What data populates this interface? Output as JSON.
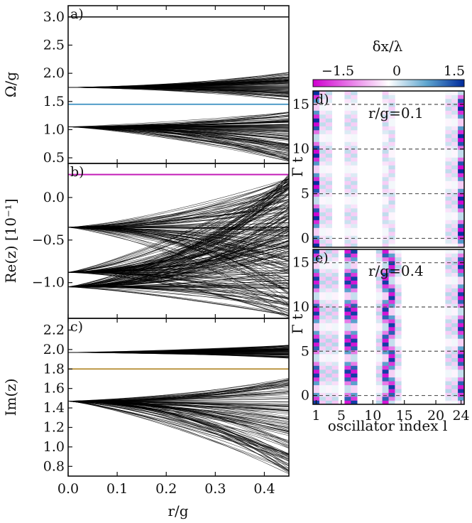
{
  "colors": {
    "a_level": "#1b1b1b",
    "a_special": "#3a8fc0",
    "b_special": "#c41fb8",
    "c_special": "#b38b2e",
    "cmap_neg": "#d000d0",
    "cmap_mid": "#ffffff",
    "cmap_pos": "#002a9c"
  },
  "shared_xaxis": {
    "label": "r/g",
    "ticks": [
      "0.0",
      "0.1",
      "0.2",
      "0.3",
      "0.4"
    ],
    "range": [
      0,
      0.45
    ]
  },
  "chart_data": [
    {
      "id": "a",
      "panel_label": "a)",
      "type": "line",
      "ylabel": "Ω/g",
      "ylim": [
        0.4,
        3.2
      ],
      "yticks": [
        "0.5",
        "1.0",
        "1.5",
        "2.0",
        "2.5",
        "3.0"
      ],
      "flat_lines": [
        3.0,
        1.45
      ],
      "band_start": [
        1.75,
        1.05
      ],
      "band_end_max": [
        2.02,
        1.32
      ],
      "band_end_min": [
        1.52,
        0.42
      ]
    },
    {
      "id": "b",
      "panel_label": "b)",
      "type": "line",
      "ylabel": "Re(z) [10⁻¹]",
      "ylim": [
        -1.42,
        0.4
      ],
      "yticks": [
        "0.0",
        "−0.5",
        "−1.0"
      ],
      "flat_lines": [
        0.27
      ],
      "band_start": [
        -0.35,
        -0.88,
        -1.05
      ],
      "band_end_max": 0.28,
      "band_end_min": -1.42
    },
    {
      "id": "c",
      "panel_label": "c)",
      "type": "line",
      "ylabel": "Im(z)",
      "ylim": [
        0.7,
        2.32
      ],
      "yticks": [
        "0.8",
        "1.0",
        "1.2",
        "1.4",
        "1.6",
        "1.8",
        "2.0",
        "2.2"
      ],
      "flat_lines": [
        1.8
      ],
      "band_start": [
        1.97,
        1.47
      ],
      "band_end_max": [
        2.05,
        1.72
      ],
      "band_end_min": [
        1.91,
        0.7
      ]
    },
    {
      "id": "d",
      "panel_label": "d)",
      "annotation": "r/g=0.1",
      "type": "heatmap",
      "ylabel": "Γ t",
      "ylim": [
        -1,
        16.5
      ],
      "yticks": [
        "0",
        "5",
        "10",
        "15"
      ],
      "dashed_y": [
        0,
        5,
        10,
        15
      ],
      "bright_columns": [
        1,
        24
      ],
      "faint_columns": [
        2,
        3,
        6,
        7,
        12,
        13,
        22,
        23
      ],
      "amplitude_bright": 1.5,
      "amplitude_faint": 0.3
    },
    {
      "id": "e",
      "panel_label": "e)",
      "annotation": "r/g=0.4",
      "type": "heatmap",
      "ylabel": "Γ t",
      "xlabel": "oscillator index l",
      "xticks": [
        "1",
        "5",
        "10",
        "15",
        "20",
        "24"
      ],
      "ylim": [
        -1,
        16.5
      ],
      "yticks": [
        "0",
        "5",
        "10",
        "15"
      ],
      "dashed_y": [
        0,
        5,
        10,
        15
      ],
      "bright_columns": [
        1,
        6,
        7,
        12,
        13,
        24
      ],
      "faint_columns": [
        2,
        3,
        4,
        11,
        14,
        22,
        23
      ],
      "amplitude_bright": 1.4,
      "amplitude_faint": 0.35
    }
  ],
  "colorbar": {
    "label": "δx/λ",
    "ticks": [
      "−1.5",
      "0",
      "1.5"
    ],
    "range": [
      -1.5,
      1.5
    ]
  }
}
